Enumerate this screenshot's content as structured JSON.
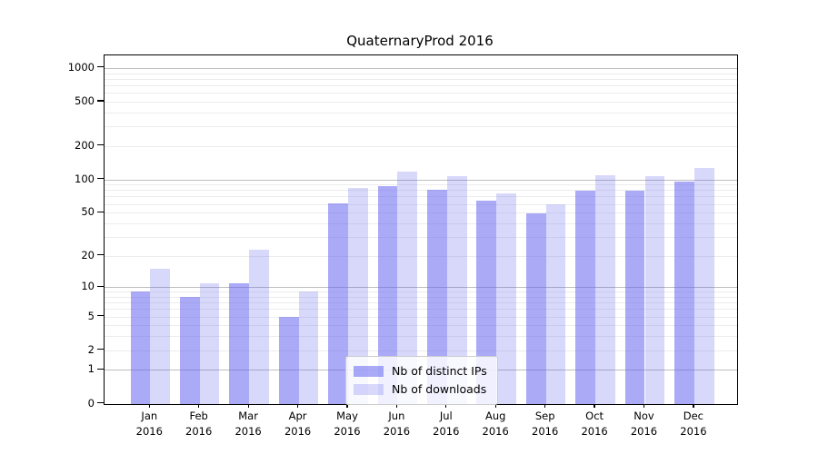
{
  "chart_data": {
    "type": "bar",
    "title": "QuaternaryProd 2016",
    "categories": [
      "Jan 2016",
      "Feb 2016",
      "Mar 2016",
      "Apr 2016",
      "May 2016",
      "Jun 2016",
      "Jul 2016",
      "Aug 2016",
      "Sep 2016",
      "Oct 2016",
      "Nov 2016",
      "Dec 2016"
    ],
    "series": [
      {
        "name": "Nb of distinct IPs",
        "color": "#6464f0",
        "alpha": 0.55,
        "values": [
          9,
          8,
          11,
          5,
          61,
          87,
          81,
          64,
          49,
          79,
          79,
          96
        ]
      },
      {
        "name": "Nb of downloads",
        "color": "#6464f0",
        "alpha": 0.25,
        "values": [
          15,
          11,
          23,
          9,
          83,
          118,
          108,
          75,
          60,
          110,
          108,
          128
        ]
      }
    ],
    "xlabel": "",
    "ylabel": "",
    "y_axis": {
      "scale": "log1p",
      "ticks": [
        0,
        1,
        2,
        5,
        10,
        20,
        50,
        100,
        200,
        500,
        1000
      ],
      "top_value": 1310
    },
    "grid": {
      "major_ticks": [
        1,
        10,
        100,
        1000
      ],
      "major_color": "#bdbdbd",
      "minor_color": "#ececec",
      "axis_color": "#000000"
    },
    "legend": {
      "position": "lower center"
    }
  }
}
